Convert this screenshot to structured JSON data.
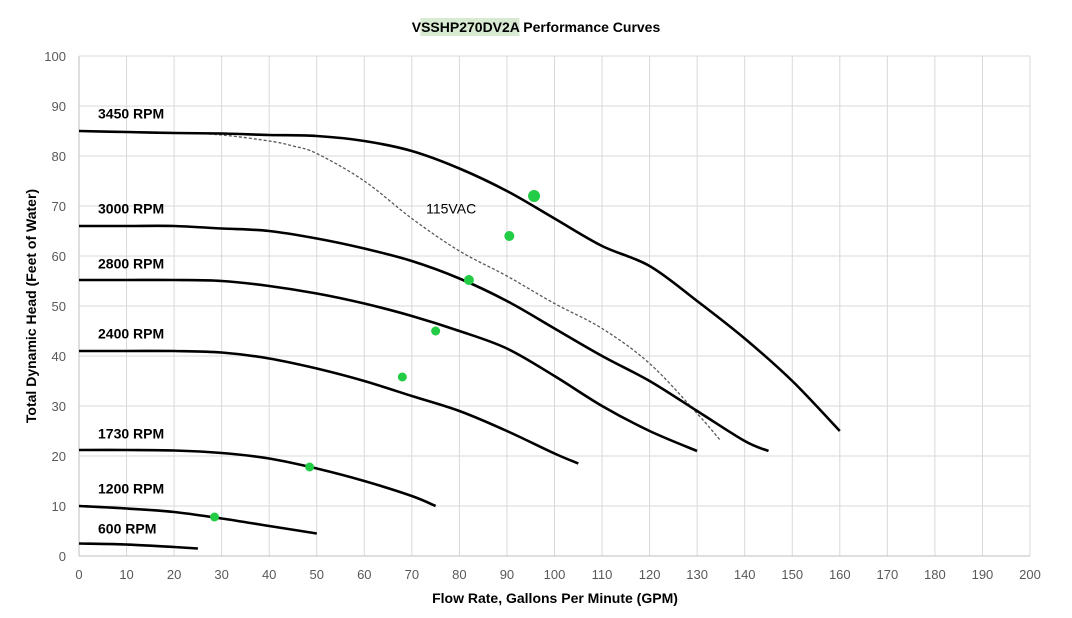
{
  "chart_data": {
    "type": "line",
    "title_highlight": "VSSHP270DV2A",
    "title_rest": " Performance Curves",
    "xlabel": "Flow Rate, Gallons Per Minute (GPM)",
    "ylabel": "Total Dynamic Head (Feet of Water)",
    "xlim": [
      0,
      200
    ],
    "ylim": [
      0,
      100
    ],
    "xticks": [
      0,
      10,
      20,
      30,
      40,
      50,
      60,
      70,
      80,
      90,
      100,
      110,
      120,
      130,
      140,
      150,
      160,
      170,
      180,
      190,
      200
    ],
    "yticks": [
      0,
      10,
      20,
      30,
      40,
      50,
      60,
      70,
      80,
      90,
      100
    ],
    "grid": true,
    "colors": {
      "curve": "#000000",
      "limit": "#595959",
      "marker": "#22cc44",
      "title_highlight_bg": "#d9ead3",
      "grid": "#d9d9d9"
    },
    "series": [
      {
        "name": "3450 RPM",
        "label_at": [
          4,
          87.5
        ],
        "x": [
          0,
          10,
          20,
          30,
          40,
          50,
          60,
          70,
          80,
          90,
          100,
          110,
          120,
          130,
          140,
          150,
          160
        ],
        "y": [
          85,
          84.8,
          84.6,
          84.5,
          84.2,
          84,
          83,
          81,
          77.5,
          73,
          67.5,
          62,
          58,
          51,
          43.5,
          35,
          25
        ]
      },
      {
        "name": "3000 RPM",
        "label_at": [
          4,
          68.5
        ],
        "x": [
          0,
          10,
          20,
          30,
          40,
          50,
          60,
          70,
          80,
          90,
          100,
          110,
          120,
          130,
          140,
          145
        ],
        "y": [
          66,
          66,
          66,
          65.5,
          65,
          63.5,
          61.5,
          59,
          55.5,
          51,
          45.5,
          40,
          35,
          29,
          23,
          21
        ]
      },
      {
        "name": "2800 RPM",
        "label_at": [
          4,
          57.5
        ],
        "x": [
          0,
          10,
          20,
          30,
          40,
          50,
          60,
          70,
          80,
          90,
          100,
          110,
          120,
          130
        ],
        "y": [
          55.2,
          55.2,
          55.2,
          55,
          54,
          52.5,
          50.5,
          48,
          45,
          41.5,
          36,
          30,
          25,
          21
        ]
      },
      {
        "name": "2400 RPM",
        "label_at": [
          4,
          43.5
        ],
        "x": [
          0,
          10,
          20,
          30,
          40,
          50,
          60,
          70,
          80,
          90,
          100,
          105
        ],
        "y": [
          41,
          41,
          41,
          40.7,
          39.5,
          37.5,
          35,
          32,
          29,
          25,
          20.5,
          18.5
        ]
      },
      {
        "name": "1730 RPM",
        "label_at": [
          4,
          23.5
        ],
        "x": [
          0,
          10,
          20,
          30,
          40,
          50,
          60,
          70,
          75
        ],
        "y": [
          21.2,
          21.2,
          21.1,
          20.6,
          19.5,
          17.5,
          15,
          12,
          10
        ]
      },
      {
        "name": "1200 RPM",
        "label_at": [
          4,
          12.5
        ],
        "x": [
          0,
          10,
          20,
          30,
          40,
          50
        ],
        "y": [
          10,
          9.5,
          8.8,
          7.5,
          6,
          4.5
        ]
      },
      {
        "name": "600 RPM",
        "label_at": [
          4,
          4.5
        ],
        "x": [
          0,
          10,
          20,
          25
        ],
        "y": [
          2.5,
          2.3,
          1.8,
          1.5
        ]
      }
    ],
    "limit_curve": {
      "label": "115VAC",
      "label_at": [
        73,
        68.5
      ],
      "x": [
        0,
        20,
        30,
        40,
        45,
        50,
        60,
        70,
        80,
        90,
        100,
        110,
        120,
        130,
        135
      ],
      "y": [
        85,
        84.7,
        84.2,
        83,
        82,
        80.5,
        75,
        67.5,
        61,
        56,
        50.5,
        45.5,
        38.5,
        28.5,
        23
      ]
    },
    "markers": [
      {
        "x": 95.7,
        "y": 72,
        "r": 6
      },
      {
        "x": 90.5,
        "y": 64,
        "r": 5
      },
      {
        "x": 82,
        "y": 55.2,
        "r": 5
      },
      {
        "x": 75,
        "y": 45,
        "r": 4.5
      },
      {
        "x": 68,
        "y": 35.8,
        "r": 4.5
      },
      {
        "x": 48.5,
        "y": 17.8,
        "r": 4.5
      },
      {
        "x": 28.5,
        "y": 7.8,
        "r": 4.5
      }
    ]
  }
}
